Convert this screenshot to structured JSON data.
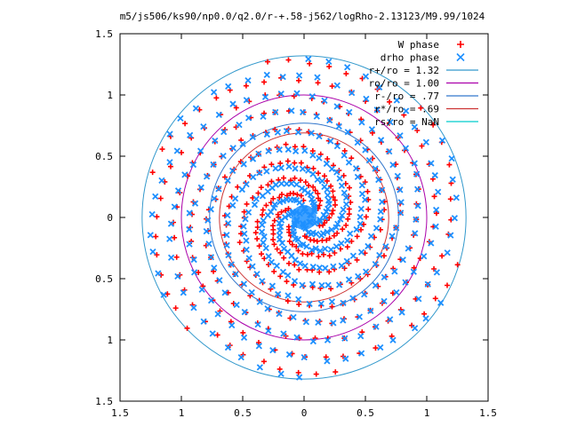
{
  "chart_data": {
    "type": "scatter",
    "title": "m5/js506/ks90/np0.0/q2.0/r-+.58-j562/logRho-2.13123/M9.99/1024",
    "xlim": [
      -1.5,
      1.5
    ],
    "ylim": [
      -1.5,
      1.5
    ],
    "x_ticks": [
      -1.5,
      -1,
      -0.5,
      0,
      0.5,
      1,
      1.5
    ],
    "y_ticks": [
      -1.5,
      -1,
      -0.5,
      0,
      0.5,
      1,
      1.5
    ],
    "x_tick_labels": [
      "1.5",
      "1",
      "0.5",
      "0",
      "0.5",
      "1",
      "1.5"
    ],
    "y_tick_labels": [
      "1.5",
      "1",
      "0.5",
      "0",
      "0.5",
      "1",
      "1.5"
    ],
    "grid": false,
    "legend_position": "top-right",
    "series": [
      {
        "name": "W phase",
        "marker": "plus",
        "color": "#ff0000",
        "arms": 6,
        "spiral_start": 0.15,
        "spiral_end": 1.3,
        "twist": 6.0,
        "angle_offset": 0.55
      },
      {
        "name": "drho phase",
        "marker": "cross",
        "color": "#1e90ff",
        "arms": 6,
        "spiral_start": 0.05,
        "spiral_end": 1.3,
        "twist": 6.0,
        "angle_offset": 0.3
      }
    ],
    "circles": [
      {
        "name": "r+/ro = 1.32",
        "radius": 1.32,
        "color": "#3399cc"
      },
      {
        "name": "ro/ro = 1.00",
        "radius": 1.0,
        "color": "#aa00aa"
      },
      {
        "name": "r-/ro = .77",
        "radius": 0.77,
        "color": "#3377cc"
      },
      {
        "name": "r*/ro = .69",
        "radius": 0.69,
        "color": "#cc3333"
      },
      {
        "name": "rs/ro = NaN",
        "radius": null,
        "color": "#00cccc"
      }
    ]
  }
}
